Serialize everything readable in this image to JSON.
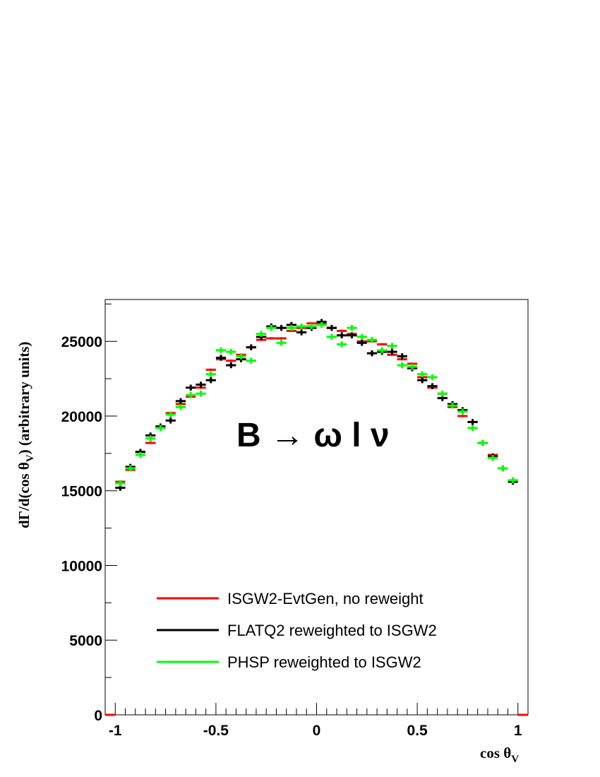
{
  "chart_data": {
    "type": "scatter",
    "xlim": [
      -1.05,
      1.05
    ],
    "ylim": [
      0,
      27800
    ],
    "xticks": [
      -1,
      -0.5,
      0,
      0.5,
      1
    ],
    "xtick_labels": [
      "-1",
      "-0.5",
      "0",
      "0.5",
      "1"
    ],
    "yticks": [
      0,
      5000,
      10000,
      15000,
      20000,
      25000
    ],
    "ytick_labels": [
      "0",
      "5000",
      "10000",
      "15000",
      "20000",
      "25000"
    ],
    "xlabel": "cos θV",
    "ylabel": "dΓ/d(cos θV) (arbitrary units)",
    "annotation": "B → ω l ν",
    "legend_position": "bottom-center",
    "bin_width": 0.05,
    "series": [
      {
        "name": "ISGW2-EvtGen, no reweight",
        "color": "#ff0000",
        "x": [
          -0.975,
          -0.925,
          -0.875,
          -0.825,
          -0.775,
          -0.725,
          -0.675,
          -0.625,
          -0.575,
          -0.525,
          -0.475,
          -0.425,
          -0.375,
          -0.325,
          -0.275,
          -0.225,
          -0.175,
          -0.125,
          -0.075,
          -0.025,
          0.025,
          0.075,
          0.125,
          0.175,
          0.225,
          0.275,
          0.325,
          0.375,
          0.425,
          0.475,
          0.525,
          0.575,
          0.625,
          0.675,
          0.725,
          0.775,
          0.825,
          0.875,
          0.925,
          0.975
        ],
        "y": [
          15600,
          16400,
          17600,
          18200,
          19300,
          20200,
          20800,
          21300,
          21900,
          23100,
          23800,
          23700,
          24100,
          24600,
          25100,
          25200,
          25200,
          25700,
          25900,
          26200,
          26200,
          25900,
          25700,
          25500,
          25000,
          25000,
          24800,
          24100,
          23800,
          23500,
          22600,
          21900,
          21500,
          20600,
          20000,
          19600,
          18200,
          17400,
          16500,
          15700
        ],
        "yerr": [
          80,
          80,
          80,
          80,
          80,
          80,
          80,
          80,
          80,
          80,
          80,
          80,
          80,
          80,
          80,
          80,
          80,
          80,
          80,
          80,
          80,
          80,
          80,
          80,
          80,
          80,
          80,
          80,
          80,
          80,
          80,
          80,
          80,
          80,
          80,
          80,
          80,
          80,
          80,
          80
        ]
      },
      {
        "name": "FLATQ2 reweighted to ISGW2",
        "color": "#000000",
        "x": [
          -0.975,
          -0.925,
          -0.875,
          -0.825,
          -0.775,
          -0.725,
          -0.675,
          -0.625,
          -0.575,
          -0.525,
          -0.475,
          -0.425,
          -0.375,
          -0.325,
          -0.275,
          -0.225,
          -0.175,
          -0.125,
          -0.075,
          -0.025,
          0.025,
          0.075,
          0.125,
          0.175,
          0.225,
          0.275,
          0.325,
          0.375,
          0.425,
          0.475,
          0.525,
          0.575,
          0.625,
          0.675,
          0.725,
          0.775,
          0.825,
          0.875,
          0.925,
          0.975
        ],
        "y": [
          15200,
          16600,
          17600,
          18700,
          19300,
          19700,
          21000,
          21900,
          22100,
          22400,
          23900,
          23400,
          23800,
          24600,
          25300,
          26000,
          25900,
          26100,
          25600,
          25900,
          26300,
          25900,
          25400,
          25400,
          24900,
          24200,
          24300,
          24300,
          24000,
          23200,
          22400,
          22000,
          21200,
          20800,
          20400,
          19600,
          18200,
          17300,
          16500,
          15600
        ],
        "yerr": [
          200,
          200,
          200,
          200,
          200,
          200,
          200,
          200,
          200,
          200,
          200,
          200,
          200,
          200,
          200,
          200,
          200,
          200,
          200,
          200,
          200,
          200,
          200,
          200,
          200,
          200,
          200,
          200,
          200,
          200,
          200,
          200,
          200,
          200,
          200,
          200,
          200,
          200,
          200,
          200
        ]
      },
      {
        "name": "PHSP reweighted to ISGW2",
        "color": "#00ff00",
        "x": [
          -0.975,
          -0.925,
          -0.875,
          -0.825,
          -0.775,
          -0.725,
          -0.675,
          -0.625,
          -0.575,
          -0.525,
          -0.475,
          -0.425,
          -0.375,
          -0.325,
          -0.275,
          -0.225,
          -0.175,
          -0.125,
          -0.075,
          -0.025,
          0.025,
          0.075,
          0.125,
          0.175,
          0.225,
          0.275,
          0.325,
          0.375,
          0.425,
          0.475,
          0.525,
          0.575,
          0.625,
          0.675,
          0.725,
          0.775,
          0.825,
          0.875,
          0.925,
          0.975
        ],
        "y": [
          15500,
          16500,
          17400,
          18500,
          19200,
          20100,
          20600,
          21400,
          21500,
          22800,
          24400,
          24300,
          24000,
          23700,
          25500,
          25900,
          24900,
          25900,
          26000,
          26000,
          26100,
          25300,
          24800,
          25900,
          25300,
          25100,
          24400,
          24700,
          23400,
          23300,
          22800,
          22600,
          21500,
          20700,
          20300,
          19200,
          18200,
          17200,
          16500,
          15700
        ],
        "yerr": [
          200,
          200,
          200,
          200,
          200,
          200,
          200,
          200,
          200,
          200,
          200,
          200,
          200,
          200,
          200,
          200,
          200,
          200,
          200,
          200,
          200,
          200,
          200,
          200,
          200,
          200,
          200,
          200,
          200,
          200,
          200,
          200,
          200,
          200,
          200,
          200,
          200,
          200,
          200,
          200
        ]
      }
    ]
  }
}
